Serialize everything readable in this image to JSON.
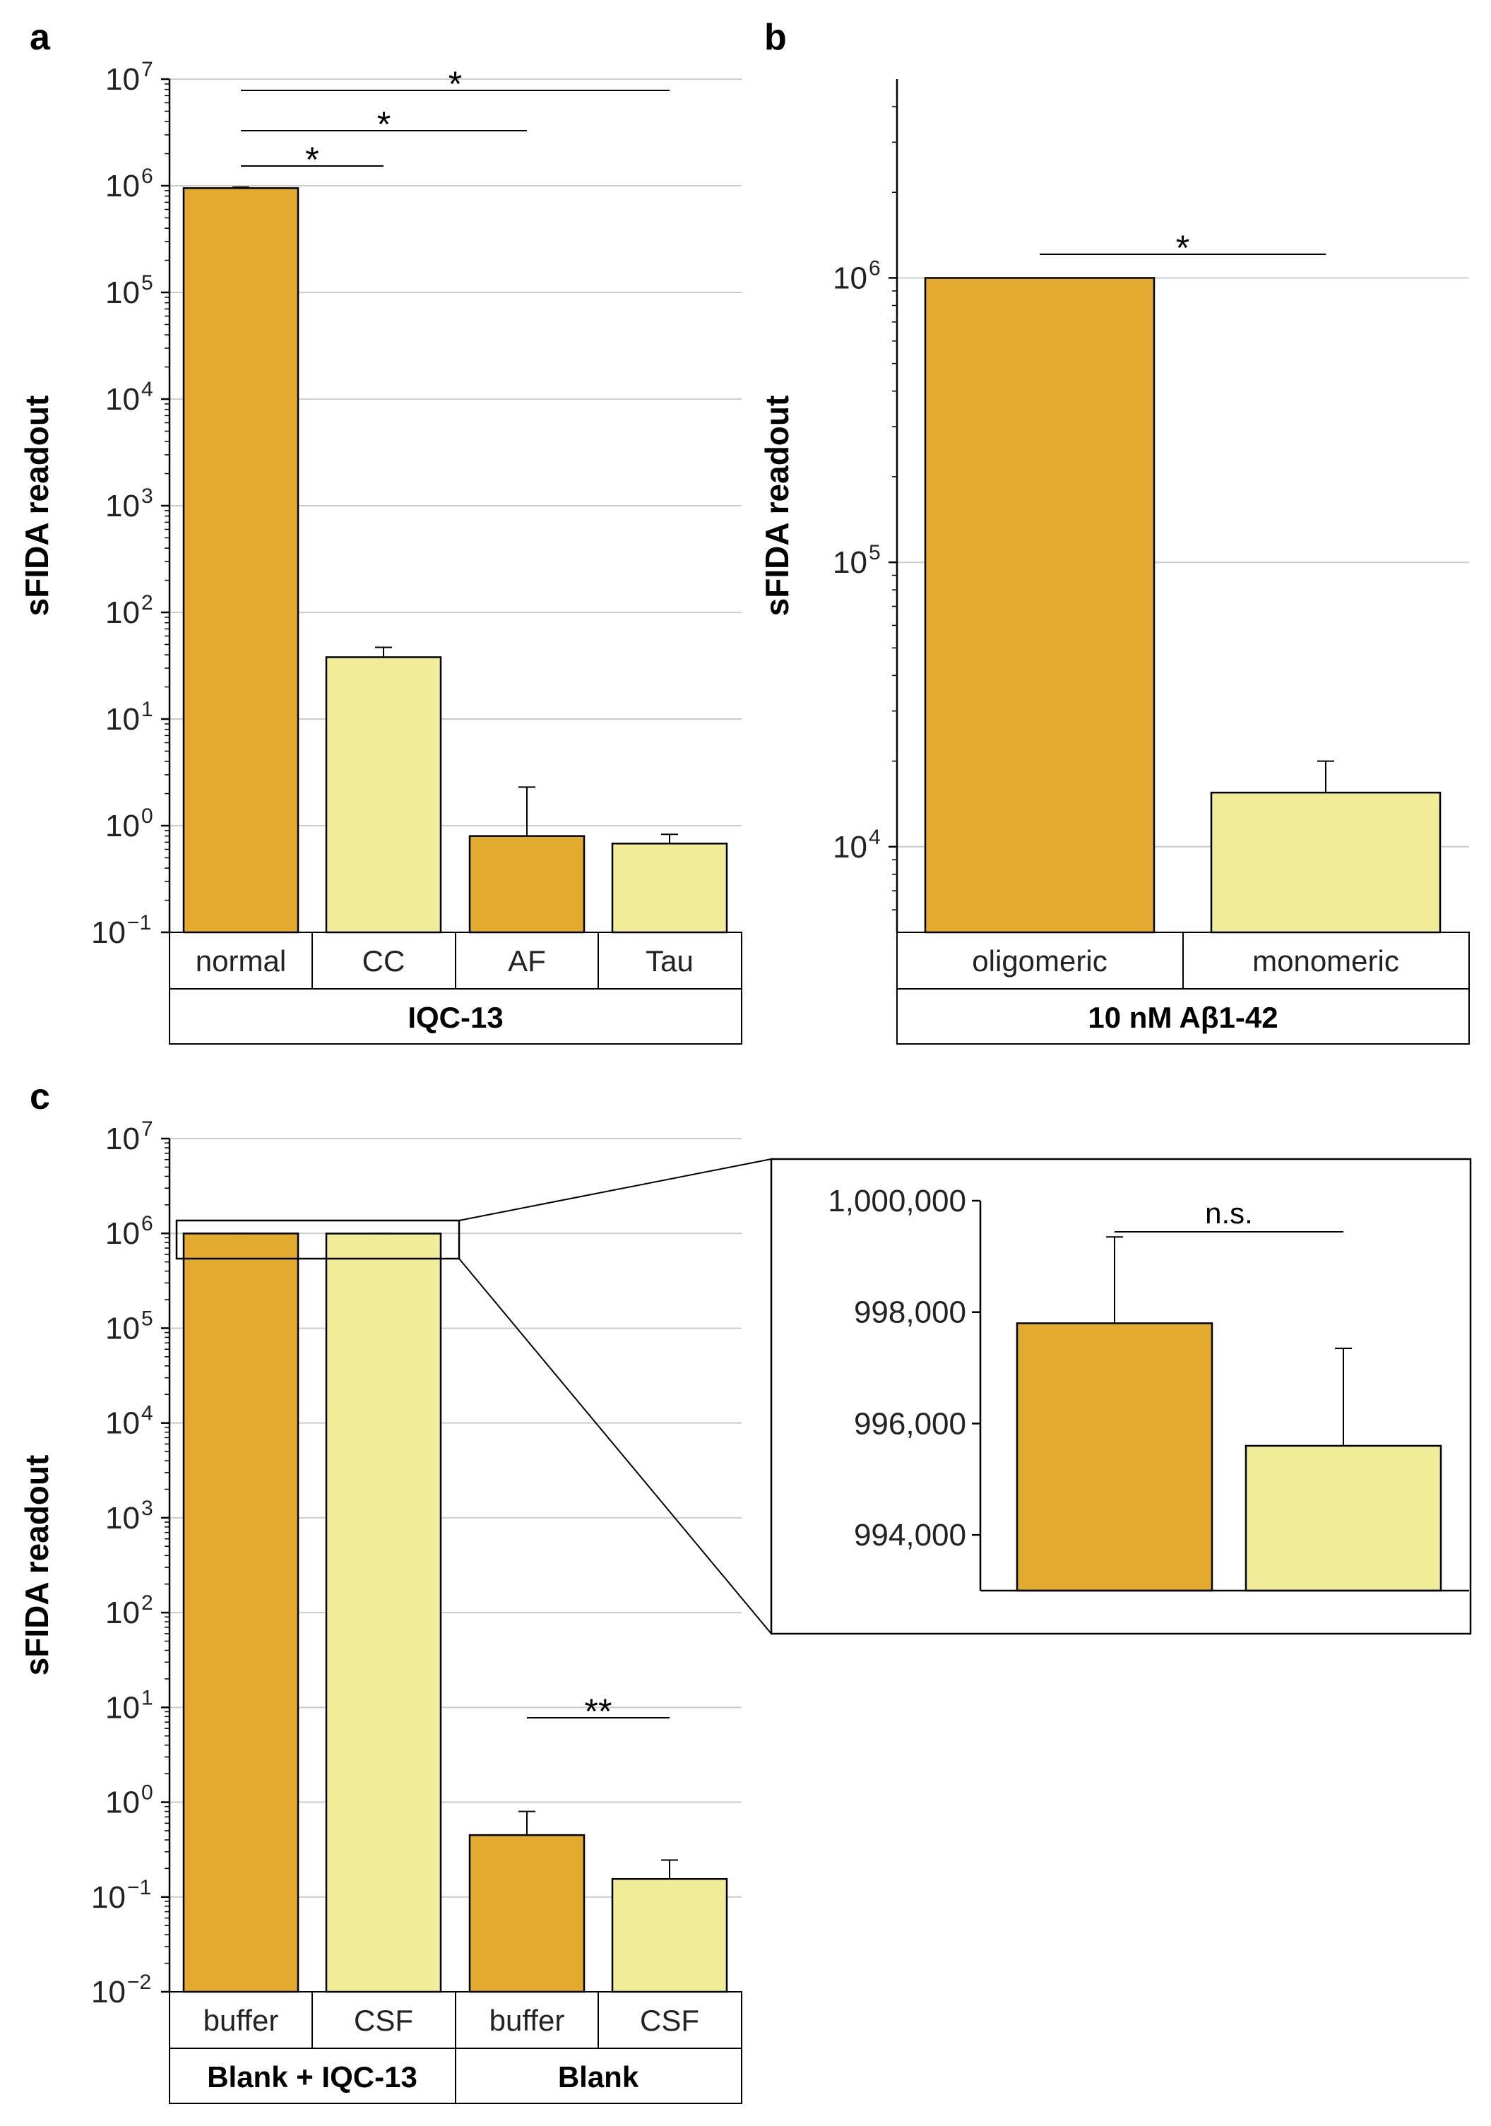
{
  "colors": {
    "dark": "#E3AB2E",
    "light": "#F1EC98",
    "grid": "#cccccc",
    "stroke": "#000000"
  },
  "chart_data": [
    {
      "panel": "a",
      "type": "bar",
      "scale": "log",
      "ylabel": "sFIDA readout",
      "ylim": [
        0.1,
        10000000
      ],
      "yticks": [
        {
          "base": "10",
          "exp": "7"
        },
        {
          "base": "10",
          "exp": "6"
        },
        {
          "base": "10",
          "exp": "5"
        },
        {
          "base": "10",
          "exp": "4"
        },
        {
          "base": "10",
          "exp": "3"
        },
        {
          "base": "10",
          "exp": "2"
        },
        {
          "base": "10",
          "exp": "1"
        },
        {
          "base": "10",
          "exp": "0"
        },
        {
          "base": "10",
          "exp": "−1"
        }
      ],
      "categories": [
        "normal",
        "CC",
        "AF",
        "Tau"
      ],
      "values": [
        950000,
        38,
        0.8,
        0.68
      ],
      "errors": [
        20000,
        9,
        1.5,
        0.15
      ],
      "group_label": "IQC-13",
      "significance": [
        {
          "from": "normal",
          "to": "CC",
          "label": "*"
        },
        {
          "from": "normal",
          "to": "AF",
          "label": "*"
        },
        {
          "from": "normal",
          "to": "Tau",
          "label": "*"
        }
      ]
    },
    {
      "panel": "b",
      "type": "bar",
      "scale": "log",
      "ylabel": "sFIDA readout",
      "ylim": [
        5000,
        5000000
      ],
      "yticks": [
        {
          "base": "10",
          "exp": "6"
        },
        {
          "base": "10",
          "exp": "5"
        },
        {
          "base": "10",
          "exp": "4"
        }
      ],
      "categories": [
        "oligomeric",
        "monomeric"
      ],
      "values": [
        1000000,
        15500
      ],
      "errors": [
        0,
        4500
      ],
      "group_label": "10 nM Aβ1-42",
      "significance": [
        {
          "from": "oligomeric",
          "to": "monomeric",
          "label": "*"
        }
      ]
    },
    {
      "panel": "c",
      "type": "bar",
      "scale": "log",
      "ylabel": "sFIDA readout",
      "ylim": [
        0.01,
        10000000
      ],
      "yticks": [
        {
          "base": "10",
          "exp": "7"
        },
        {
          "base": "10",
          "exp": "6"
        },
        {
          "base": "10",
          "exp": "5"
        },
        {
          "base": "10",
          "exp": "4"
        },
        {
          "base": "10",
          "exp": "3"
        },
        {
          "base": "10",
          "exp": "2"
        },
        {
          "base": "10",
          "exp": "1"
        },
        {
          "base": "10",
          "exp": "0"
        },
        {
          "base": "10",
          "exp": "−1"
        },
        {
          "base": "10",
          "exp": "−2"
        }
      ],
      "categories": [
        "buffer",
        "CSF",
        "buffer",
        "CSF"
      ],
      "values": [
        997800,
        995600,
        0.45,
        0.155
      ],
      "errors": [
        1550,
        1750,
        0.35,
        0.09
      ],
      "groups": [
        {
          "label": "Blank + IQC-13",
          "span": [
            0,
            1
          ]
        },
        {
          "label": "Blank",
          "span": [
            2,
            3
          ]
        }
      ],
      "significance": [
        {
          "from": 2,
          "to": 3,
          "label": "**"
        }
      ]
    },
    {
      "panel": "c-inset",
      "type": "bar",
      "scale": "linear",
      "ylim": [
        993000,
        1000000
      ],
      "ytick_labels": [
        "1,000,000",
        "998,000",
        "996,000",
        "994,000"
      ],
      "categories": [
        "buffer",
        "CSF"
      ],
      "values": [
        997800,
        995600
      ],
      "errors": [
        1550,
        1750
      ],
      "significance": [
        {
          "from": 0,
          "to": 1,
          "label": "n.s."
        }
      ]
    }
  ],
  "panel_labels": [
    "a",
    "b",
    "c"
  ]
}
